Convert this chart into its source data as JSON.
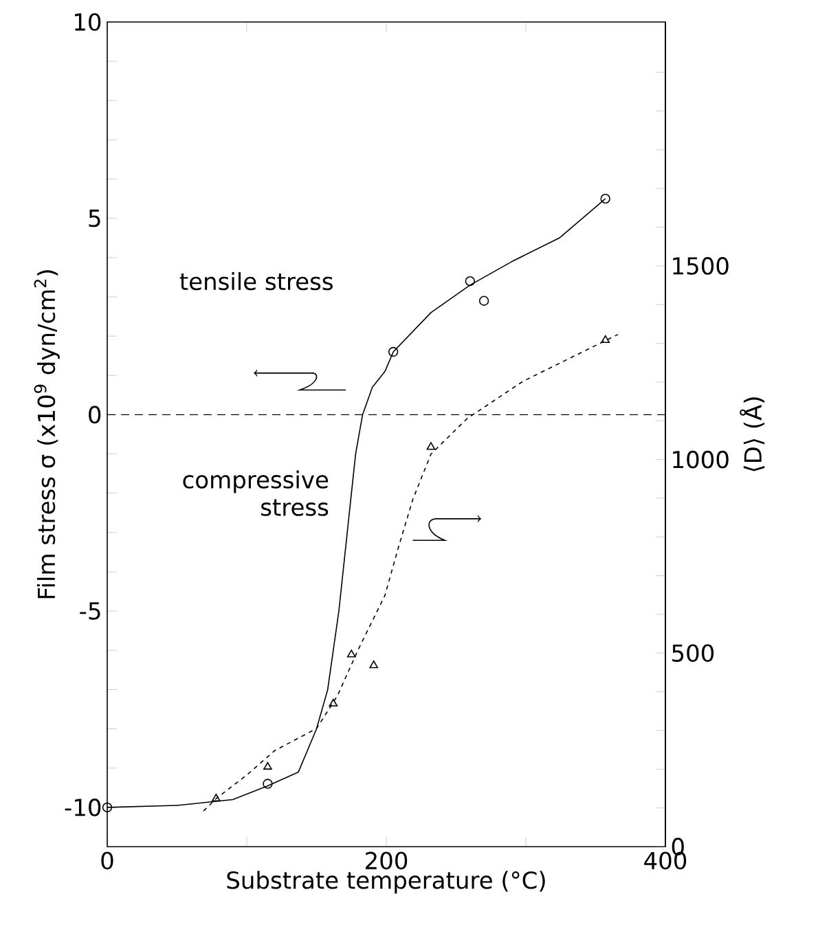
{
  "chart_data": {
    "type": "scatter",
    "xlabel": "Substrate temperature  (°C)",
    "ylabel": "Film stress  σ  (x10$^{9}$ dyn/cm$^{2}$)",
    "y2label": "⟨D⟩  (Å)",
    "xlim": [
      0,
      400
    ],
    "xticks": [
      0,
      {
        "value": 100,
        "label": null
      },
      200,
      {
        "value": 300,
        "label": null
      },
      400
    ],
    "ylim": [
      -11,
      10
    ],
    "yticks": [
      -10,
      {
        "value": -9,
        "label": null
      },
      {
        "value": -8,
        "label": null
      },
      {
        "value": -7,
        "label": null
      },
      {
        "value": -6,
        "label": null
      },
      -5,
      {
        "value": -4,
        "label": null
      },
      {
        "value": -3,
        "label": null
      },
      {
        "value": -2,
        "label": null
      },
      {
        "value": -1,
        "label": null
      },
      0,
      {
        "value": 1,
        "label": null
      },
      {
        "value": 2,
        "label": null
      },
      {
        "value": 3,
        "label": null
      },
      {
        "value": 4,
        "label": null
      },
      5,
      {
        "value": 6,
        "label": null
      },
      {
        "value": 7,
        "label": null
      },
      {
        "value": 8,
        "label": null
      },
      {
        "value": 9,
        "label": null
      },
      10
    ],
    "y2lim": [
      0,
      2130
    ],
    "y2ticks": [
      0,
      {
        "value": 100,
        "label": null
      },
      {
        "value": 200,
        "label": null
      },
      {
        "value": 300,
        "label": null
      },
      {
        "value": 400,
        "label": null
      },
      500,
      {
        "value": 600,
        "label": null
      },
      {
        "value": 700,
        "label": null
      },
      {
        "value": 800,
        "label": null
      },
      {
        "value": 900,
        "label": null
      },
      1000,
      {
        "value": 1100,
        "label": null
      },
      {
        "value": 1200,
        "label": null
      },
      {
        "value": 1300,
        "label": null
      },
      {
        "value": 1400,
        "label": null
      },
      1500,
      {
        "value": 1600,
        "label": null
      },
      {
        "value": 1700,
        "label": null
      },
      {
        "value": 1800,
        "label": null
      },
      {
        "value": 1900,
        "label": null
      },
      {
        "value": 2000,
        "label": null
      }
    ],
    "grid": false,
    "series": [
      {
        "type": "scatter",
        "marker": "circle",
        "color": "#000000",
        "x": [
          0,
          115,
          205,
          260,
          270,
          357
        ],
        "values": [
          -10,
          -9.4,
          1.6,
          3.4,
          2.9,
          5.5
        ]
      },
      {
        "type": "line",
        "marker": "none",
        "line_style": "solid",
        "color": "#000000",
        "x": [
          0,
          50,
          90,
          115,
          137,
          150,
          158,
          166,
          172,
          178,
          183,
          190,
          199,
          205,
          232,
          260,
          290,
          324,
          357
        ],
        "values": [
          -10,
          -9.95,
          -9.8,
          -9.45,
          -9.1,
          -8.0,
          -7,
          -5,
          -3,
          -1,
          0,
          0.7,
          1.1,
          1.6,
          2.6,
          3.3,
          3.9,
          4.5,
          5.5
        ]
      },
      {
        "type": "scatter",
        "marker": "triangle",
        "axis": "y2",
        "color": "#000000",
        "x": [
          78,
          115,
          162,
          175,
          191,
          232,
          357
        ],
        "values": [
          124,
          206,
          369,
          496,
          468,
          1032,
          1308
        ]
      },
      {
        "type": "line",
        "marker": "none",
        "line_style": "dashed",
        "axis": "y2",
        "color": "#000000",
        "x": [
          69,
          78,
          100,
          120,
          150,
          165,
          180,
          199,
          209,
          219,
          232,
          258,
          298,
          366
        ],
        "values": [
          92,
          124,
          185,
          248,
          305,
          390,
          510,
          649,
          777,
          897,
          1014,
          1106,
          1202,
          1323
        ]
      }
    ],
    "ref_lines": [
      {
        "axis": "y",
        "value": 0,
        "line_style": "dashed"
      }
    ],
    "annotations": [
      "tensile stress",
      "compressive stress"
    ]
  }
}
